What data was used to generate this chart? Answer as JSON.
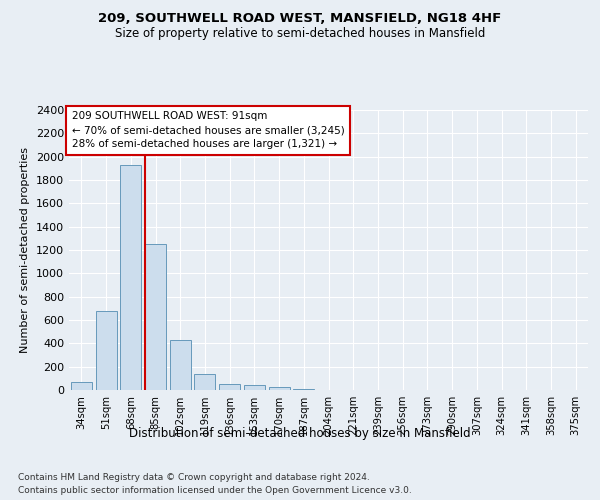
{
  "title1": "209, SOUTHWELL ROAD WEST, MANSFIELD, NG18 4HF",
  "title2": "Size of property relative to semi-detached houses in Mansfield",
  "xlabel": "Distribution of semi-detached houses by size in Mansfield",
  "ylabel": "Number of semi-detached properties",
  "categories": [
    "34sqm",
    "51sqm",
    "68sqm",
    "85sqm",
    "102sqm",
    "119sqm",
    "136sqm",
    "153sqm",
    "170sqm",
    "187sqm",
    "204sqm",
    "221sqm",
    "239sqm",
    "256sqm",
    "273sqm",
    "290sqm",
    "307sqm",
    "324sqm",
    "341sqm",
    "358sqm",
    "375sqm"
  ],
  "values": [
    65,
    680,
    1930,
    1250,
    430,
    140,
    55,
    40,
    25,
    10,
    0,
    0,
    0,
    0,
    0,
    0,
    0,
    0,
    0,
    0,
    0
  ],
  "bar_color": "#ccdded",
  "bar_edge_color": "#6699bb",
  "subject_line_color": "#cc0000",
  "annotation_text": "209 SOUTHWELL ROAD WEST: 91sqm\n← 70% of semi-detached houses are smaller (3,245)\n28% of semi-detached houses are larger (1,321) →",
  "annotation_box_color": "#ffffff",
  "annotation_box_edge": "#cc0000",
  "ylim": [
    0,
    2400
  ],
  "yticks": [
    0,
    200,
    400,
    600,
    800,
    1000,
    1200,
    1400,
    1600,
    1800,
    2000,
    2200,
    2400
  ],
  "footer1": "Contains HM Land Registry data © Crown copyright and database right 2024.",
  "footer2": "Contains public sector information licensed under the Open Government Licence v3.0.",
  "bg_color": "#e8eef4",
  "plot_bg_color": "#e8eef4"
}
